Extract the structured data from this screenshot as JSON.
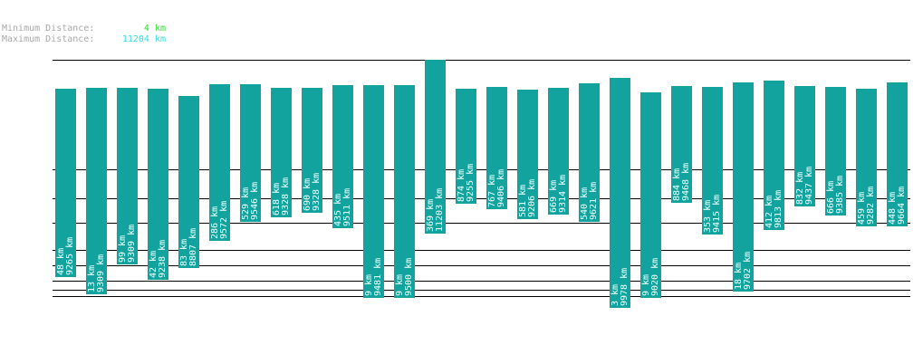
{
  "stats": {
    "min_label": "Minimum Distance:",
    "min_value": "4 km",
    "min_color": "#33dd33",
    "max_label": "Maximum Distance:",
    "max_value": "11204 km",
    "max_color": "#33dddd"
  },
  "chart_data": {
    "type": "bar",
    "title": "",
    "xlabel": "",
    "ylabel": "",
    "bar_color": "#12a39e",
    "grid_color": "#000000",
    "bars": [
      {
        "min": "48 km",
        "max": "9265 km",
        "min_val": 48,
        "max_val": 9265
      },
      {
        "min": "13 km",
        "max": "9309 km",
        "min_val": 13,
        "max_val": 9309
      },
      {
        "min": "99 km",
        "max": "9309 km",
        "min_val": 99,
        "max_val": 9309
      },
      {
        "min": "42 km",
        "max": "9238 km",
        "min_val": 42,
        "max_val": 9238
      },
      {
        "min": "83 km",
        "max": "8807 km",
        "min_val": 83,
        "max_val": 8807
      },
      {
        "min": "286 km",
        "max": "9572 km",
        "min_val": 286,
        "max_val": 9572
      },
      {
        "min": "529 km",
        "max": "9546 km",
        "min_val": 529,
        "max_val": 9546
      },
      {
        "min": "618 km",
        "max": "9328 km",
        "min_val": 618,
        "max_val": 9328
      },
      {
        "min": "690 km",
        "max": "9328 km",
        "min_val": 690,
        "max_val": 9328
      },
      {
        "min": "435 km",
        "max": "9511 km",
        "min_val": 435,
        "max_val": 9511
      },
      {
        "min": "9 km",
        "max": "9481 km",
        "min_val": 9,
        "max_val": 9481
      },
      {
        "min": "9 km",
        "max": "9500 km",
        "min_val": 9,
        "max_val": 9500
      },
      {
        "min": "369 km",
        "max": "11203 km",
        "min_val": 369,
        "max_val": 11203
      },
      {
        "min": "874 km",
        "max": "9255 km",
        "min_val": 874,
        "max_val": 9255
      },
      {
        "min": "767 km",
        "max": "9406 km",
        "min_val": 767,
        "max_val": 9406
      },
      {
        "min": "581 km",
        "max": "9206 km",
        "min_val": 581,
        "max_val": 9206
      },
      {
        "min": "669 km",
        "max": "9314 km",
        "min_val": 669,
        "max_val": 9314
      },
      {
        "min": "540 km",
        "max": "9621 km",
        "min_val": 540,
        "max_val": 9621
      },
      {
        "min": "3 km",
        "max": "9978 km",
        "min_val": 3,
        "max_val": 9978
      },
      {
        "min": "9 km",
        "max": "9020 km",
        "min_val": 9,
        "max_val": 9020
      },
      {
        "min": "884 km",
        "max": "9468 km",
        "min_val": 884,
        "max_val": 9468
      },
      {
        "min": "353 km",
        "max": "9415 km",
        "min_val": 353,
        "max_val": 9415
      },
      {
        "min": "18 km",
        "max": "9702 km",
        "min_val": 18,
        "max_val": 9702
      },
      {
        "min": "412 km",
        "max": "9813 km",
        "min_val": 412,
        "max_val": 9813
      },
      {
        "min": "832 km",
        "max": "9437 km",
        "min_val": 832,
        "max_val": 9437
      },
      {
        "min": "666 km",
        "max": "9385 km",
        "min_val": 666,
        "max_val": 9385
      },
      {
        "min": "459 km",
        "max": "9282 km",
        "min_val": 459,
        "max_val": 9282
      },
      {
        "min": "448 km",
        "max": "9664 km",
        "min_val": 448,
        "max_val": 9664
      }
    ]
  }
}
